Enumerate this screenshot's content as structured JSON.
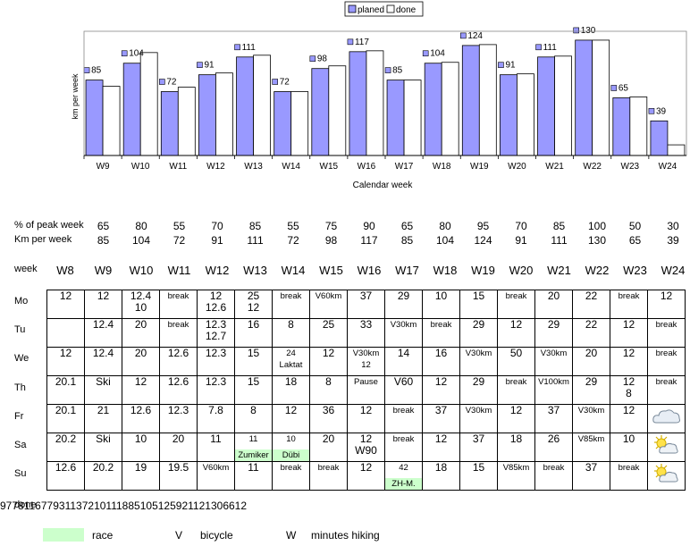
{
  "chart_data": {
    "type": "bar",
    "categories": [
      "W9",
      "W10",
      "W11",
      "W12",
      "W13",
      "W14",
      "W15",
      "W16",
      "W17",
      "W18",
      "W19",
      "W20",
      "W21",
      "W22",
      "W23",
      "W24"
    ],
    "series": [
      {
        "name": "planed",
        "values": [
          85,
          104,
          72,
          91,
          111,
          72,
          98,
          117,
          85,
          104,
          124,
          91,
          111,
          130,
          65,
          39
        ],
        "color": "#9999ff"
      },
      {
        "name": "done",
        "values": [
          78,
          116,
          77,
          93,
          113,
          72,
          101,
          118,
          85,
          105,
          125,
          92,
          112,
          130,
          66,
          12
        ],
        "color": "#ffffff"
      }
    ],
    "data_labels": [
      "85",
      "104",
      "72",
      "91",
      "111",
      "72",
      "98",
      "117",
      "85",
      "104",
      "124",
      "91",
      "111",
      "130",
      "65",
      "39"
    ],
    "xlabel": "Calendar week",
    "ylabel": "km per week",
    "ylim": [
      0,
      140
    ],
    "legend": "top",
    "grid": false
  },
  "table": {
    "peak_label": "% of peak week",
    "peak": [
      "65",
      "80",
      "55",
      "70",
      "85",
      "55",
      "75",
      "90",
      "65",
      "80",
      "95",
      "70",
      "85",
      "100",
      "50",
      "30"
    ],
    "km_label": "Km per week",
    "km": [
      "85",
      "104",
      "72",
      "91",
      "111",
      "72",
      "98",
      "117",
      "85",
      "104",
      "124",
      "91",
      "111",
      "130",
      "65",
      "39"
    ],
    "week_label": "week",
    "weeks": [
      "W8",
      "W9",
      "W10",
      "W11",
      "W12",
      "W13",
      "W14",
      "W15",
      "W16",
      "W17",
      "W18",
      "W19",
      "W20",
      "W21",
      "W22",
      "W23",
      "W24"
    ],
    "days": [
      {
        "label": "Mo",
        "cells": [
          [
            "12"
          ],
          [
            "12"
          ],
          [
            "12.4",
            "10"
          ],
          [
            "break"
          ],
          [
            "12",
            "12.6"
          ],
          [
            "25",
            "12"
          ],
          [
            "break"
          ],
          [
            "V60km"
          ],
          [
            "37"
          ],
          [
            "29"
          ],
          [
            "10"
          ],
          [
            "15"
          ],
          [
            "break"
          ],
          [
            "20"
          ],
          [
            "22"
          ],
          [
            "break"
          ],
          [
            "12"
          ]
        ]
      },
      {
        "label": "Tu",
        "cells": [
          [
            ""
          ],
          [
            "12.4"
          ],
          [
            "20"
          ],
          [
            "break"
          ],
          [
            "12.3",
            "12.7"
          ],
          [
            "16"
          ],
          [
            "8"
          ],
          [
            "25"
          ],
          [
            "33"
          ],
          [
            "V30km"
          ],
          [
            "break"
          ],
          [
            "29"
          ],
          [
            "12"
          ],
          [
            "29"
          ],
          [
            "22"
          ],
          [
            "12"
          ],
          [
            "break"
          ]
        ]
      },
      {
        "label": "We",
        "cells": [
          [
            "12"
          ],
          [
            "12.4"
          ],
          [
            "20"
          ],
          [
            "12.6"
          ],
          [
            "12.3"
          ],
          [
            "15"
          ],
          [
            "24",
            "Laktat"
          ],
          [
            "12"
          ],
          [
            "V30km",
            "12"
          ],
          [
            "14"
          ],
          [
            "16"
          ],
          [
            "V30km"
          ],
          [
            "50"
          ],
          [
            "V30km"
          ],
          [
            "20"
          ],
          [
            "12"
          ],
          [
            "break"
          ]
        ]
      },
      {
        "label": "Th",
        "cells": [
          [
            "20.1"
          ],
          [
            "Ski"
          ],
          [
            "12"
          ],
          [
            "12.6"
          ],
          [
            "12.3"
          ],
          [
            "15"
          ],
          [
            "18"
          ],
          [
            "8"
          ],
          [
            "Pause"
          ],
          [
            "V60"
          ],
          [
            "12"
          ],
          [
            "29"
          ],
          [
            "break"
          ],
          [
            "V100km"
          ],
          [
            "29"
          ],
          [
            "12",
            "8"
          ],
          [
            "break"
          ]
        ]
      },
      {
        "label": "Fr",
        "cells": [
          [
            "20.1"
          ],
          [
            "21"
          ],
          [
            "12.6"
          ],
          [
            "12.3"
          ],
          [
            "7.8"
          ],
          [
            "8"
          ],
          [
            "12"
          ],
          [
            "36"
          ],
          [
            "12"
          ],
          [
            "break"
          ],
          [
            "37"
          ],
          [
            "V30km"
          ],
          [
            "12"
          ],
          [
            "37"
          ],
          [
            "V30km"
          ],
          [
            "12"
          ],
          [
            "#cloud"
          ]
        ]
      },
      {
        "label": "Sa",
        "cells": [
          [
            "20.2"
          ],
          [
            "Ski"
          ],
          [
            "10"
          ],
          [
            "20"
          ],
          [
            "11"
          ],
          [
            "11",
            "*Zumiker"
          ],
          [
            "10",
            "*Dübi"
          ],
          [
            "20"
          ],
          [
            "12",
            "W90"
          ],
          [
            "break"
          ],
          [
            "12"
          ],
          [
            "37"
          ],
          [
            "18"
          ],
          [
            "26"
          ],
          [
            "V85km"
          ],
          [
            "10"
          ],
          [
            "#suncloud"
          ]
        ]
      },
      {
        "label": "Su",
        "cells": [
          [
            "12.6"
          ],
          [
            "20.2"
          ],
          [
            "19"
          ],
          [
            "19.5"
          ],
          [
            "V60km"
          ],
          [
            "11"
          ],
          [
            "break"
          ],
          [
            "break"
          ],
          [
            "12"
          ],
          [
            "42",
            "*ZH-M."
          ],
          [
            "18"
          ],
          [
            "15"
          ],
          [
            "V85km"
          ],
          [
            "break"
          ],
          [
            "37"
          ],
          [
            "break"
          ],
          [
            "#suncloud"
          ]
        ]
      }
    ],
    "done_label": "done",
    "done": [
      "97",
      "78",
      "116",
      "77",
      "93",
      "113",
      "72",
      "101",
      "118",
      "85",
      "105",
      "125",
      "92",
      "112",
      "130",
      "66",
      "12"
    ]
  },
  "legend_bottom": {
    "race": "race",
    "bicycle_code": "V",
    "bicycle": "bicycle",
    "hiking_code": "W",
    "hiking": "minutes hiking"
  },
  "icons": [
    "cloud-icon",
    "sun-cloud-icon"
  ]
}
